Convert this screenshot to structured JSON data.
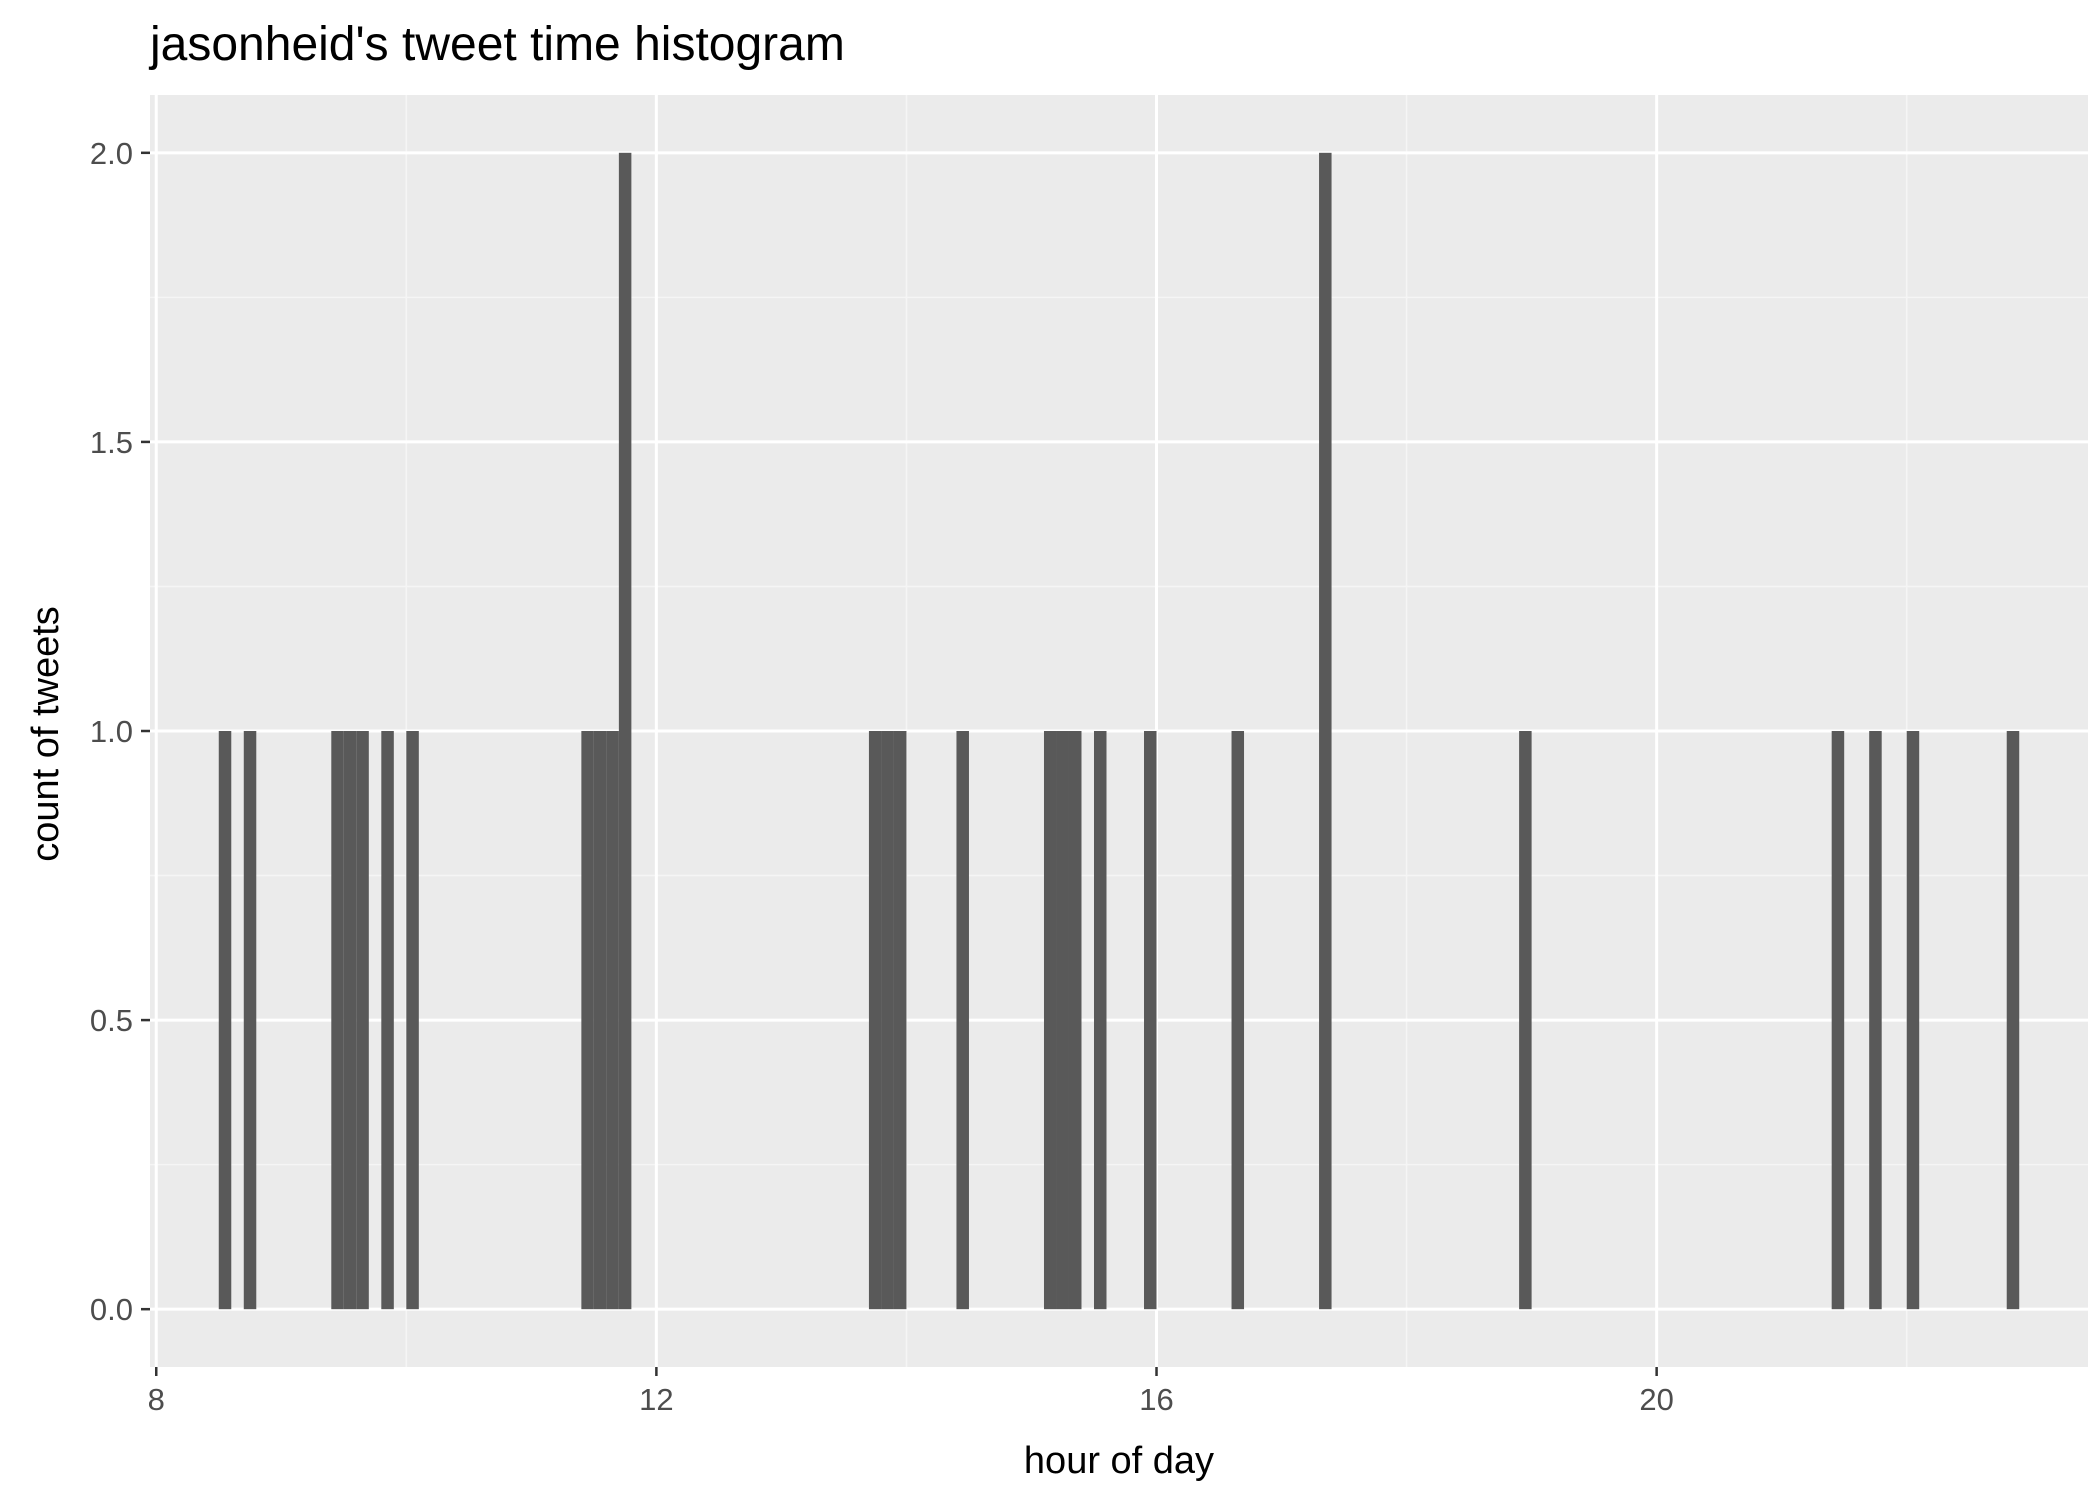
{
  "chart_data": {
    "type": "bar",
    "title": "jasonheid's tweet time histogram",
    "xlabel": "hour of day",
    "ylabel": "count of tweets",
    "xlim": [
      7.95,
      23.45
    ],
    "ylim": [
      -0.1,
      2.1
    ],
    "x_ticks": [
      8,
      12,
      16,
      20
    ],
    "x_tick_labels": [
      "8",
      "12",
      "16",
      "20"
    ],
    "y_ticks": [
      0,
      0.5,
      1,
      1.5,
      2
    ],
    "y_tick_labels": [
      "0.0",
      "0.5",
      "1.0",
      "1.5",
      "2.0"
    ],
    "bin_width": 0.1,
    "x_minor_grid": [
      10,
      14,
      18,
      22
    ],
    "y_minor_grid": [
      0.25,
      0.75,
      1.25,
      1.75
    ],
    "grid": true,
    "bars": [
      {
        "x": 8.55,
        "count": 1
      },
      {
        "x": 8.75,
        "count": 1
      },
      {
        "x": 9.45,
        "count": 1
      },
      {
        "x": 9.55,
        "count": 1
      },
      {
        "x": 9.65,
        "count": 1
      },
      {
        "x": 9.85,
        "count": 1
      },
      {
        "x": 10.05,
        "count": 1
      },
      {
        "x": 11.45,
        "count": 1
      },
      {
        "x": 11.55,
        "count": 1
      },
      {
        "x": 11.65,
        "count": 1
      },
      {
        "x": 11.75,
        "count": 2
      },
      {
        "x": 13.75,
        "count": 1
      },
      {
        "x": 13.85,
        "count": 1
      },
      {
        "x": 13.95,
        "count": 1
      },
      {
        "x": 14.45,
        "count": 1
      },
      {
        "x": 15.15,
        "count": 1
      },
      {
        "x": 15.25,
        "count": 1
      },
      {
        "x": 15.35,
        "count": 1
      },
      {
        "x": 15.55,
        "count": 1
      },
      {
        "x": 15.95,
        "count": 1
      },
      {
        "x": 16.65,
        "count": 1
      },
      {
        "x": 17.35,
        "count": 2
      },
      {
        "x": 18.95,
        "count": 1
      },
      {
        "x": 21.45,
        "count": 1
      },
      {
        "x": 21.75,
        "count": 1
      },
      {
        "x": 22.05,
        "count": 1
      },
      {
        "x": 22.85,
        "count": 1
      }
    ],
    "colors": {
      "panel_background": "#ebebeb",
      "grid_major": "#ffffff",
      "grid_minor": "#f5f5f5",
      "bar_fill": "#595959",
      "tick_label": "#4d4d4d",
      "tick_mark": "#333333",
      "text": "#000000"
    }
  }
}
